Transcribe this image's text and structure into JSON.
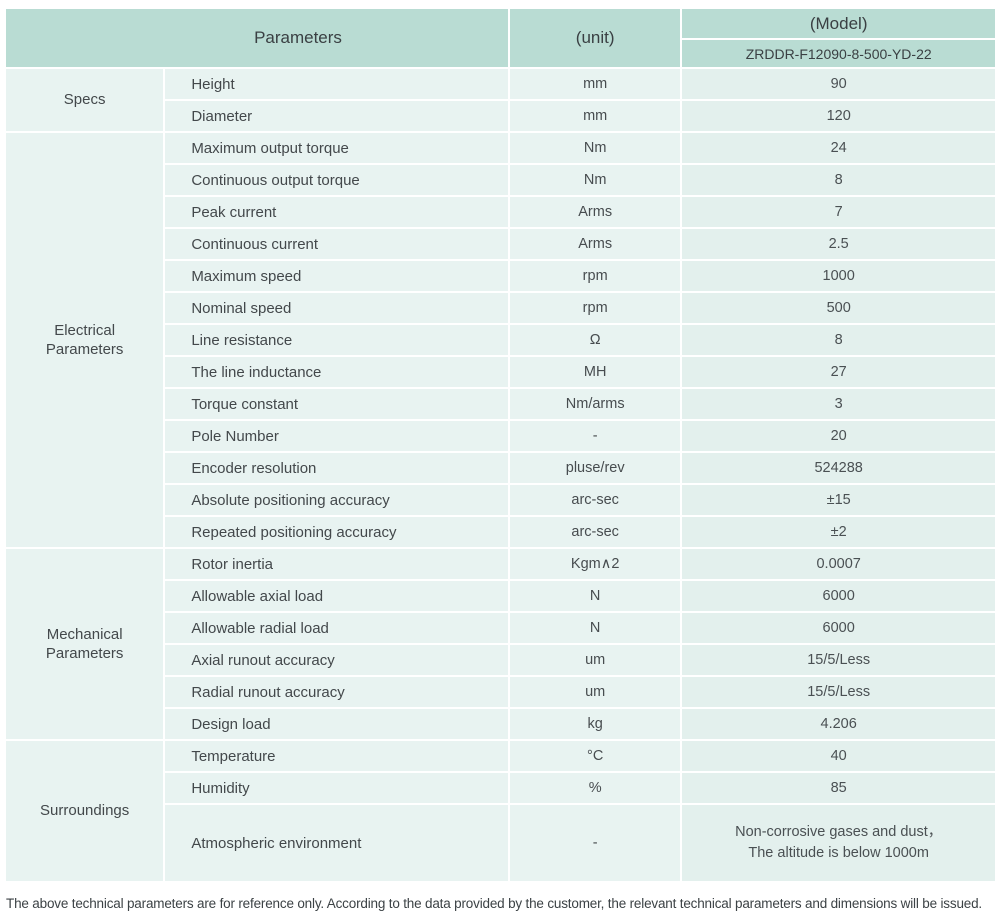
{
  "colors": {
    "header_bg": "#b9dcd3",
    "cell_bg": "#e8f3f1",
    "value_cell_bg": "#e3f0ed",
    "border": "#ffffff",
    "text": "#3f4548"
  },
  "header": {
    "parameters_label": "Parameters",
    "unit_label": "(unit)",
    "model_label": "(Model)",
    "model_value": "ZRDDR-F12090-8-500-YD-22"
  },
  "sections": [
    {
      "name": "Specs",
      "rows": [
        {
          "param": "Height",
          "unit": "mm",
          "value": "90"
        },
        {
          "param": "Diameter",
          "unit": "mm",
          "value": "120"
        }
      ]
    },
    {
      "name": "Electrical Parameters",
      "rows": [
        {
          "param": "Maximum output torque",
          "unit": "Nm",
          "value": "24"
        },
        {
          "param": "Continuous output torque",
          "unit": "Nm",
          "value": "8"
        },
        {
          "param": "Peak current",
          "unit": "Arms",
          "value": "7"
        },
        {
          "param": "Continuous current",
          "unit": "Arms",
          "value": "2.5"
        },
        {
          "param": "Maximum speed",
          "unit": "rpm",
          "value": "1000"
        },
        {
          "param": "Nominal speed",
          "unit": "rpm",
          "value": "500"
        },
        {
          "param": "Line resistance",
          "unit": "Ω",
          "value": "8"
        },
        {
          "param": "The line inductance",
          "unit": "MH",
          "value": "27"
        },
        {
          "param": "Torque constant",
          "unit": "Nm/arms",
          "value": "3"
        },
        {
          "param": "Pole Number",
          "unit": "-",
          "value": "20"
        },
        {
          "param": "Encoder resolution",
          "unit": "pluse/rev",
          "value": "524288"
        },
        {
          "param": "Absolute positioning accuracy",
          "unit": "arc-sec",
          "value": "±15"
        },
        {
          "param": "Repeated positioning accuracy",
          "unit": "arc-sec",
          "value": "±2"
        }
      ]
    },
    {
      "name": "Mechanical Parameters",
      "rows": [
        {
          "param": "Rotor inertia",
          "unit": "Kgm∧2",
          "value": "0.0007"
        },
        {
          "param": "Allowable axial load",
          "unit": "N",
          "value": "6000"
        },
        {
          "param": "Allowable radial load",
          "unit": "N",
          "value": "6000"
        },
        {
          "param": "Axial runout accuracy",
          "unit": "um",
          "value": "15/5/Less"
        },
        {
          "param": "Radial runout accuracy",
          "unit": "um",
          "value": "15/5/Less"
        },
        {
          "param": "Design load",
          "unit": "kg",
          "value": "4.206"
        }
      ]
    },
    {
      "name": "Surroundings",
      "rows": [
        {
          "param": "Temperature",
          "unit": "°C",
          "value": "40"
        },
        {
          "param": "Humidity",
          "unit": "%",
          "value": "85"
        },
        {
          "param": "Atmospheric environment",
          "unit": "-",
          "value_line1": "Non-corrosive gases and dust，",
          "value_line2": "The altitude is below 1000m"
        }
      ]
    }
  ],
  "footer": {
    "note": "The above technical parameters are for reference only. According to the data provided by the customer, the relevant technical parameters and dimensions will be issued."
  }
}
